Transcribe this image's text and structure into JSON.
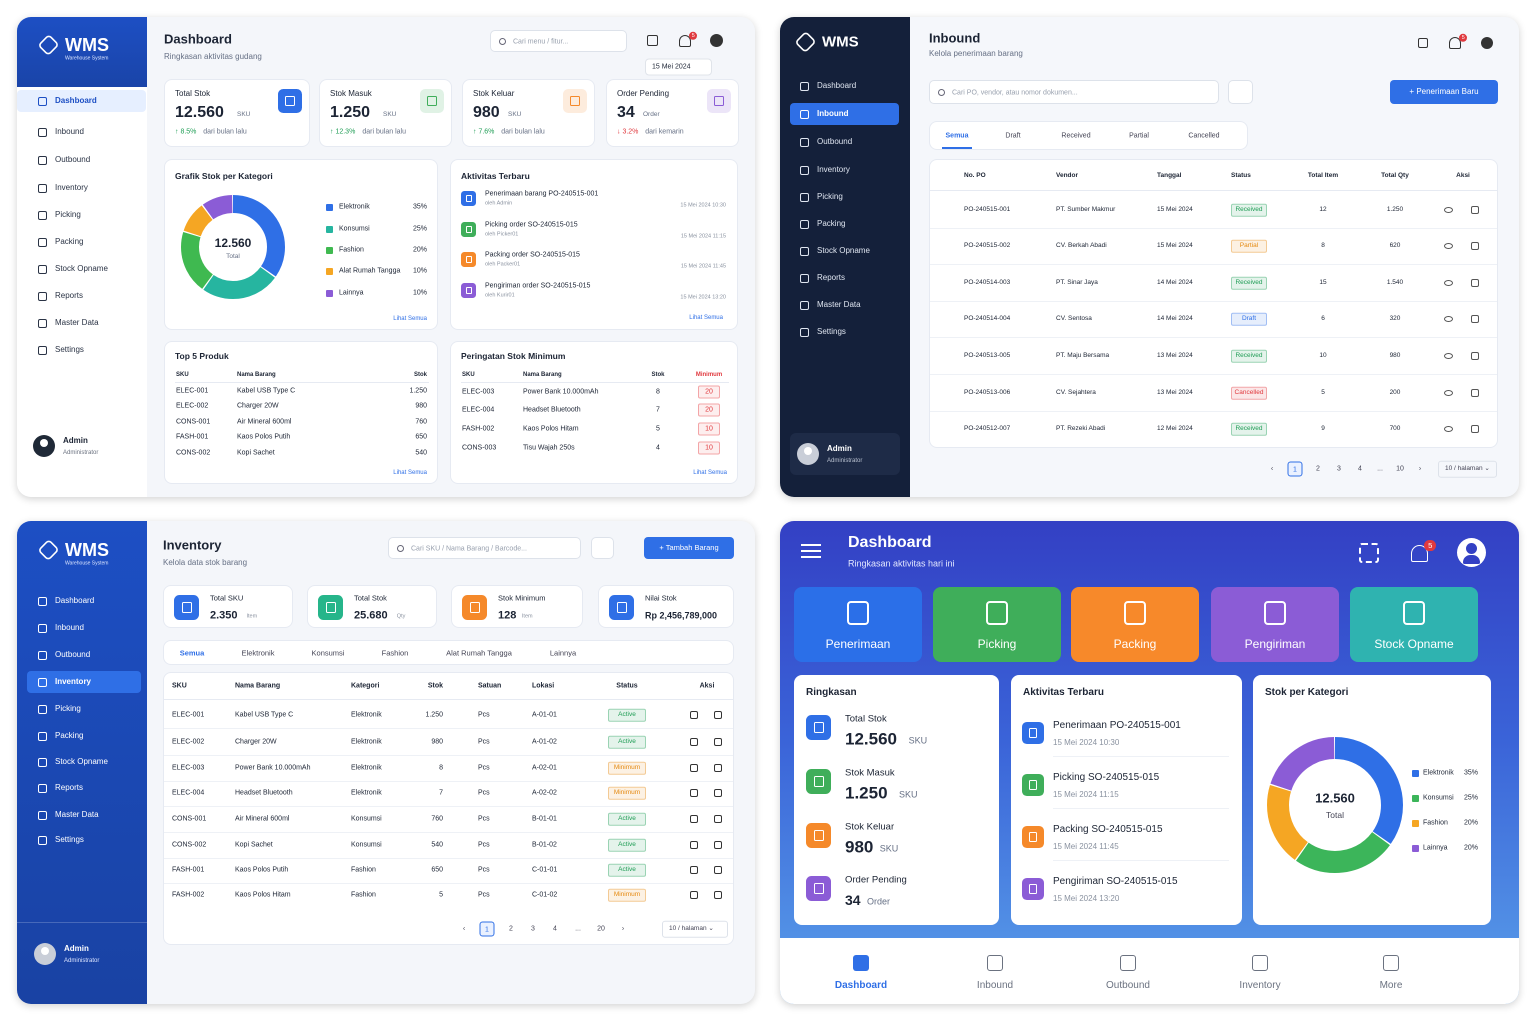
{
  "brand": "WMS",
  "brand_sub": "Warehouse System",
  "menu": [
    "Dashboard",
    "Inbound",
    "Outbound",
    "Inventory",
    "Picking",
    "Packing",
    "Stock Opname",
    "Reports",
    "Master Data",
    "Settings"
  ],
  "user": {
    "name": "Admin",
    "role": "Administrator"
  },
  "dashboard": {
    "title": "Dashboard",
    "subtitle": "Ringkasan aktivitas gudang",
    "search": "Cari menu / fitur...",
    "date": "15 Mei 2024",
    "notifications": "5",
    "kpis": [
      {
        "label": "Total Stok",
        "value": "12.560",
        "unit": "SKU",
        "change": "↑ 8.5%",
        "note": "dari bulan lalu",
        "change_color": "#1f9d55",
        "color": "#2f6fe6"
      },
      {
        "label": "Stok Masuk",
        "value": "1.250",
        "unit": "SKU",
        "change": "↑ 12.3%",
        "note": "dari bulan lalu",
        "change_color": "#1f9d55",
        "color": "#3fae5a"
      },
      {
        "label": "Stok Keluar",
        "value": "980",
        "unit": "SKU",
        "change": "↑ 7.6%",
        "note": "dari bulan lalu",
        "change_color": "#1f9d55",
        "color": "#f5892a"
      },
      {
        "label": "Order Pending",
        "value": "34",
        "unit": "Order",
        "change": "↓ 3.2%",
        "note": "dari kemarin",
        "change_color": "#e0393e",
        "color": "#8b5cd6"
      }
    ],
    "chart": {
      "type": "pie",
      "title": "Grafik Stok per Kategori",
      "center_value": "12.560",
      "center_label": "Total",
      "categories": [
        "Elektronik",
        "Konsumsi",
        "Fashion",
        "Alat Rumah Tangga",
        "Lainnya"
      ],
      "values": [
        35,
        25,
        20,
        10,
        10
      ],
      "value_labels": [
        "35%",
        "25%",
        "20%",
        "10%",
        "10%"
      ],
      "colors": [
        "#2f6fe6",
        "#26b5a0",
        "#3fb950",
        "#f5a623",
        "#8b5cd6"
      ],
      "link": "Lihat Semua"
    },
    "activity": {
      "title": "Aktivitas Terbaru",
      "link": "Lihat Semua",
      "items": [
        {
          "title": "Penerimaan barang PO-240515-001",
          "by": "oleh Admin",
          "time": "15 Mei 2024 10:30",
          "color": "#2f6fe6"
        },
        {
          "title": "Picking order SO-240515-015",
          "by": "oleh Picker01",
          "time": "15 Mei 2024 11:15",
          "color": "#3fae5a"
        },
        {
          "title": "Packing order SO-240515-015",
          "by": "oleh Packer01",
          "time": "15 Mei 2024 11:45",
          "color": "#f5892a"
        },
        {
          "title": "Pengiriman order SO-240515-015",
          "by": "oleh Kurir01",
          "time": "15 Mei 2024 13:20",
          "color": "#8b5cd6"
        }
      ]
    },
    "top_products": {
      "title": "Top 5 Produk",
      "link": "Lihat Semua",
      "columns": [
        "SKU",
        "Nama Barang",
        "Stok"
      ],
      "rows": [
        [
          "ELEC-001",
          "Kabel USB Type C",
          "1.250"
        ],
        [
          "ELEC-002",
          "Charger 20W",
          "980"
        ],
        [
          "CONS-001",
          "Air Mineral 600ml",
          "760"
        ],
        [
          "FASH-001",
          "Kaos Polos Putih",
          "650"
        ],
        [
          "CONS-002",
          "Kopi Sachet",
          "540"
        ]
      ]
    },
    "minimum_stock": {
      "title": "Peringatan Stok Minimum",
      "link": "Lihat Semua",
      "columns": [
        "SKU",
        "Nama Barang",
        "Stok",
        "Minimum"
      ],
      "rows": [
        [
          "ELEC-003",
          "Power Bank 10.000mAh",
          "8",
          "20"
        ],
        [
          "ELEC-004",
          "Headset Bluetooth",
          "7",
          "20"
        ],
        [
          "FASH-002",
          "Kaos Polos Hitam",
          "5",
          "10"
        ],
        [
          "CONS-003",
          "Tisu Wajah 250s",
          "4",
          "10"
        ]
      ]
    }
  },
  "inbound": {
    "title": "Inbound",
    "subtitle": "Kelola penerimaan barang",
    "notifications": "5",
    "search": "Cari PO, vendor, atau nomor dokumen...",
    "button": "+ Penerimaan Baru",
    "tabs": [
      "Semua",
      "Draft",
      "Received",
      "Partial",
      "Cancelled"
    ],
    "columns": [
      "No. PO",
      "Vendor",
      "Tanggal",
      "Status",
      "Total Item",
      "Total Qty",
      "Aksi"
    ],
    "rows": [
      [
        "PO-240515-001",
        "PT. Sumber Makmur",
        "15 Mei 2024",
        "Received",
        "12",
        "1.250"
      ],
      [
        "PO-240515-002",
        "CV. Berkah Abadi",
        "15 Mei 2024",
        "Partial",
        "8",
        "620"
      ],
      [
        "PO-240514-003",
        "PT. Sinar Jaya",
        "14 Mei 2024",
        "Received",
        "15",
        "1.540"
      ],
      [
        "PO-240514-004",
        "CV. Sentosa",
        "14 Mei 2024",
        "Draft",
        "6",
        "320"
      ],
      [
        "PO-240513-005",
        "PT. Maju Bersama",
        "13 Mei 2024",
        "Received",
        "10",
        "980"
      ],
      [
        "PO-240513-006",
        "CV. Sejahtera",
        "13 Mei 2024",
        "Cancelled",
        "5",
        "200"
      ],
      [
        "PO-240512-007",
        "PT. Rezeki Abadi",
        "12 Mei 2024",
        "Received",
        "9",
        "700"
      ]
    ],
    "status_colors": {
      "Received": "#1f9d55",
      "Partial": "#e58a12",
      "Draft": "#2f6fe6",
      "Cancelled": "#e0393e"
    },
    "pagination": [
      "‹",
      "1",
      "2",
      "3",
      "4",
      "...",
      "10",
      "›"
    ],
    "per_page": "10 / halaman ⌄"
  },
  "inventory": {
    "title": "Inventory",
    "subtitle": "Kelola data stok barang",
    "search": "Cari SKU / Nama Barang / Barcode...",
    "button": "+ Tambah Barang",
    "kpis": [
      {
        "label": "Total SKU",
        "value": "2.350",
        "unit": "Item",
        "color": "#2f6fe6"
      },
      {
        "label": "Total Stok",
        "value": "25.680",
        "unit": "Qty",
        "color": "#26b58a"
      },
      {
        "label": "Stok Minimum",
        "value": "128",
        "unit": "Item",
        "color": "#f5892a"
      },
      {
        "label": "Nilai Stok",
        "value": "Rp 2,456,789,000",
        "color": "#2f6fe6"
      }
    ],
    "tabs": [
      "Semua",
      "Elektronik",
      "Konsumsi",
      "Fashion",
      "Alat Rumah Tangga",
      "Lainnya"
    ],
    "columns": [
      "SKU",
      "Nama Barang",
      "Kategori",
      "Stok",
      "Satuan",
      "Lokasi",
      "Status",
      "Aksi"
    ],
    "rows": [
      [
        "ELEC-001",
        "Kabel USB Type C",
        "Elektronik",
        "1.250",
        "Pcs",
        "A-01-01",
        "Active"
      ],
      [
        "ELEC-002",
        "Charger 20W",
        "Elektronik",
        "980",
        "Pcs",
        "A-01-02",
        "Active"
      ],
      [
        "ELEC-003",
        "Power Bank 10.000mAh",
        "Elektronik",
        "8",
        "Pcs",
        "A-02-01",
        "Minimum"
      ],
      [
        "ELEC-004",
        "Headset Bluetooth",
        "Elektronik",
        "7",
        "Pcs",
        "A-02-02",
        "Minimum"
      ],
      [
        "CONS-001",
        "Air Mineral 600ml",
        "Konsumsi",
        "760",
        "Pcs",
        "B-01-01",
        "Active"
      ],
      [
        "CONS-002",
        "Kopi Sachet",
        "Konsumsi",
        "540",
        "Pcs",
        "B-01-02",
        "Active"
      ],
      [
        "FASH-001",
        "Kaos Polos Putih",
        "Fashion",
        "650",
        "Pcs",
        "C-01-01",
        "Active"
      ],
      [
        "FASH-002",
        "Kaos Polos Hitam",
        "Fashion",
        "5",
        "Pcs",
        "C-01-02",
        "Minimum"
      ]
    ],
    "status_colors": {
      "Active": "#1f9d55",
      "Minimum": "#e58a12"
    },
    "pagination": [
      "‹",
      "1",
      "2",
      "3",
      "4",
      "...",
      "20",
      "›"
    ],
    "per_page": "10 / halaman ⌄"
  },
  "mobile": {
    "title": "Dashboard",
    "subtitle": "Ringkasan aktivitas hari ini",
    "notifications": "5",
    "tiles": [
      {
        "label": "Penerimaan",
        "color": "#2b6fe8"
      },
      {
        "label": "Picking",
        "color": "#3fae5a"
      },
      {
        "label": "Packing",
        "color": "#f7892a"
      },
      {
        "label": "Pengiriman",
        "color": "#8b5cd6"
      },
      {
        "label": "Stock Opname",
        "color": "#2fb3b0"
      }
    ],
    "summary": {
      "title": "Ringkasan",
      "items": [
        {
          "label": "Total Stok",
          "value": "12.560",
          "unit": "SKU",
          "color": "#2f6fe6"
        },
        {
          "label": "Stok Masuk",
          "value": "1.250",
          "unit": "SKU",
          "color": "#3fae5a"
        },
        {
          "label": "Stok Keluar",
          "value": "980",
          "unit": "SKU",
          "color": "#f5892a"
        },
        {
          "label": "Order Pending",
          "value": "34",
          "unit": "Order",
          "color": "#8b5cd6"
        }
      ]
    },
    "activity": {
      "title": "Aktivitas Terbaru",
      "items": [
        {
          "title": "Penerimaan PO-240515-001",
          "time": "15 Mei 2024 10:30",
          "color": "#2f6fe6"
        },
        {
          "title": "Picking SO-240515-015",
          "time": "15 Mei 2024 11:15",
          "color": "#3fae5a"
        },
        {
          "title": "Packing SO-240515-015",
          "time": "15 Mei 2024 11:45",
          "color": "#f5892a"
        },
        {
          "title": "Pengiriman SO-240515-015",
          "time": "15 Mei 2024 13:20",
          "color": "#8b5cd6"
        }
      ]
    },
    "chart": {
      "type": "pie",
      "title": "Stok per Kategori",
      "center_value": "12.560",
      "center_label": "Total",
      "categories": [
        "Elektronik",
        "Konsumsi",
        "Fashion",
        "Lainnya"
      ],
      "values": [
        35,
        25,
        20,
        20
      ],
      "value_labels": [
        "35%",
        "25%",
        "20%",
        "20%"
      ],
      "colors": [
        "#2f6fe6",
        "#3cb55a",
        "#f5a623",
        "#8b5cd6"
      ]
    },
    "nav": [
      "Dashboard",
      "Inbound",
      "Outbound",
      "Inventory",
      "More"
    ]
  }
}
